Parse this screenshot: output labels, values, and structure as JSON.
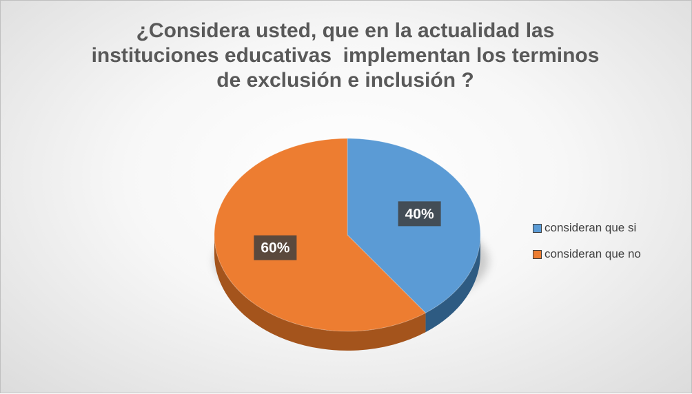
{
  "chart_data": {
    "type": "pie",
    "title_lines": [
      "¿Considera usted, que en la actualidad las",
      "instituciones educativas  implementan los terminos",
      "de exclusión e inclusión ?"
    ],
    "slices": [
      {
        "label": "consideran que si",
        "value": 40,
        "data_label": "40%",
        "color": "#5B9BD5",
        "side_color": "#2E5B82"
      },
      {
        "label": "consideran que no",
        "value": 60,
        "data_label": "60%",
        "color": "#ED7D31",
        "side_color": "#A4541C"
      }
    ],
    "legend_position": "right",
    "style": "3d"
  }
}
